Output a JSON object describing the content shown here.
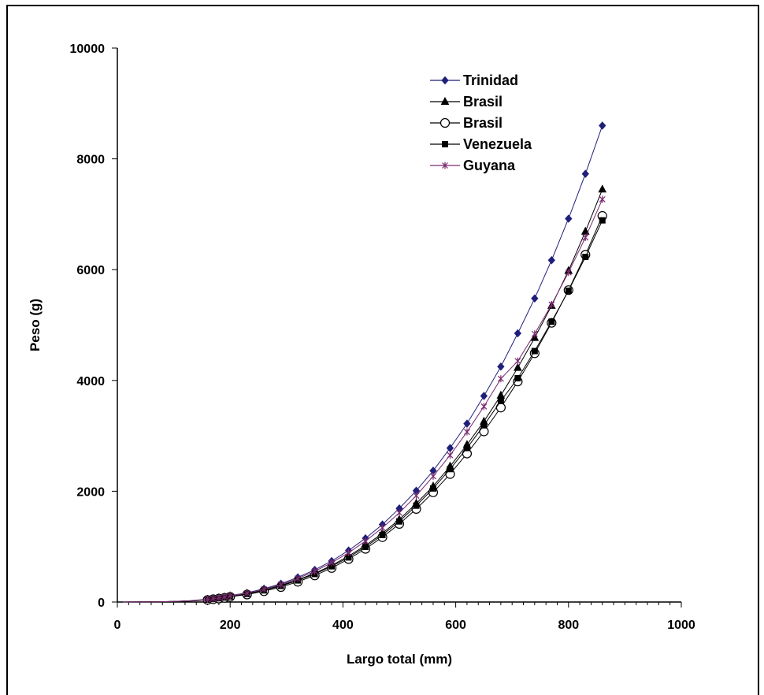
{
  "chart_data": {
    "type": "line",
    "title": "",
    "xlabel": "Largo total (mm)",
    "ylabel": "Peso (g)",
    "xlim": [
      0,
      1000
    ],
    "ylim": [
      0,
      10000
    ],
    "xticks": [
      0,
      200,
      400,
      600,
      800,
      1000
    ],
    "yticks": [
      0,
      2000,
      4000,
      6000,
      8000,
      10000
    ],
    "grid": false,
    "legend_position": "top-center",
    "series": [
      {
        "name": "Trinidad",
        "color": "#1f1f7a",
        "marker": "diamond",
        "x": [
          10,
          40,
          70,
          100,
          130,
          160,
          170,
          180,
          190,
          200,
          230,
          260,
          290,
          320,
          350,
          380,
          410,
          440,
          470,
          500,
          530,
          560,
          590,
          620,
          650,
          680,
          710,
          740,
          770,
          800,
          830,
          860
        ],
        "y": [
          0,
          1,
          4,
          12,
          25,
          50,
          65,
          80,
          95,
          115,
          165,
          240,
          330,
          445,
          580,
          740,
          930,
          1150,
          1400,
          1690,
          2010,
          2370,
          2780,
          3220,
          3720,
          4250,
          4850,
          5480,
          6170,
          6920,
          7730,
          8600
        ]
      },
      {
        "name": "Brasil",
        "color": "#000000",
        "marker": "triangle",
        "x": [
          10,
          40,
          70,
          100,
          130,
          160,
          170,
          180,
          190,
          200,
          230,
          260,
          290,
          320,
          350,
          380,
          410,
          440,
          470,
          500,
          530,
          560,
          590,
          620,
          650,
          680,
          710,
          740,
          770,
          800,
          830,
          860
        ],
        "y": [
          0,
          1,
          3,
          10,
          22,
          45,
          58,
          72,
          86,
          105,
          150,
          215,
          300,
          400,
          520,
          660,
          830,
          1020,
          1240,
          1490,
          1780,
          2090,
          2450,
          2840,
          3260,
          3730,
          4230,
          4770,
          5350,
          5980,
          6690,
          7450
        ]
      },
      {
        "name": "Brasil",
        "color": "#000000",
        "marker": "circle-open",
        "x": [
          10,
          40,
          70,
          100,
          130,
          160,
          170,
          180,
          190,
          200,
          230,
          260,
          290,
          320,
          350,
          380,
          410,
          440,
          470,
          500,
          530,
          560,
          590,
          620,
          650,
          680,
          710,
          740,
          770,
          800,
          830,
          860
        ],
        "y": [
          0,
          1,
          3,
          8,
          18,
          38,
          50,
          62,
          75,
          95,
          135,
          195,
          270,
          365,
          480,
          615,
          775,
          960,
          1170,
          1410,
          1680,
          1980,
          2310,
          2680,
          3080,
          3510,
          3980,
          4490,
          5040,
          5630,
          6270,
          6970
        ]
      },
      {
        "name": "Venezuela",
        "color": "#000000",
        "marker": "square",
        "x": [
          10,
          40,
          70,
          100,
          130,
          160,
          170,
          180,
          190,
          200,
          230,
          260,
          290,
          320,
          350,
          380,
          410,
          440,
          470,
          500,
          530,
          560,
          590,
          620,
          650,
          680,
          710,
          740,
          770,
          800,
          830,
          860
        ],
        "y": [
          0,
          1,
          3,
          9,
          20,
          42,
          54,
          67,
          80,
          100,
          145,
          210,
          290,
          390,
          505,
          645,
          805,
          995,
          1210,
          1455,
          1740,
          2050,
          2400,
          2780,
          3190,
          3630,
          4040,
          4530,
          5060,
          5620,
          6230,
          6890
        ]
      },
      {
        "name": "Guyana",
        "color": "#7a2a6e",
        "marker": "star",
        "x": [
          10,
          40,
          70,
          100,
          130,
          160,
          170,
          180,
          190,
          200,
          230,
          260,
          290,
          320,
          350,
          380,
          410,
          440,
          470,
          500,
          530,
          560,
          590,
          620,
          650,
          680,
          710,
          740,
          770,
          800,
          830,
          860
        ],
        "y": [
          0,
          1,
          4,
          11,
          23,
          47,
          60,
          75,
          90,
          110,
          160,
          230,
          315,
          425,
          555,
          710,
          890,
          1100,
          1340,
          1610,
          1920,
          2270,
          2650,
          3070,
          3530,
          4030,
          4350,
          4840,
          5370,
          5950,
          6580,
          7270
        ]
      }
    ]
  }
}
